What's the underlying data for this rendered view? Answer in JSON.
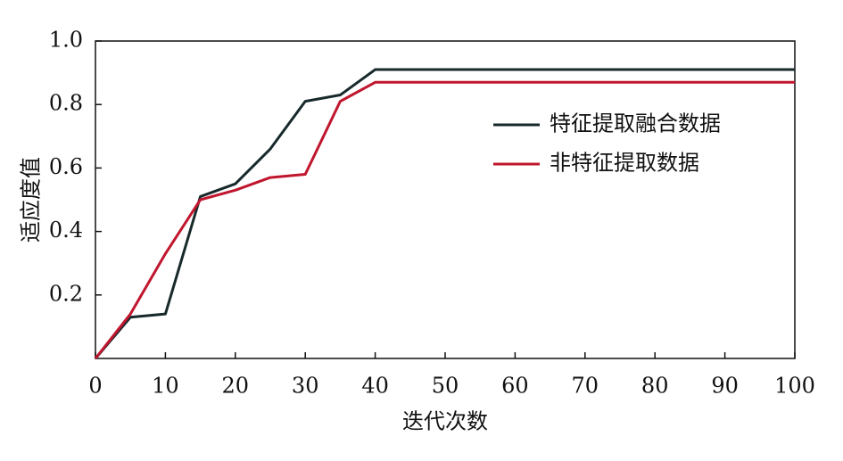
{
  "chart_data": {
    "type": "line",
    "x_label": "迭代次数",
    "y_label": "适应度值",
    "x": [
      0,
      5,
      10,
      15,
      20,
      25,
      30,
      35,
      40,
      100
    ],
    "series": [
      {
        "name": "特征提取融合数据",
        "color": "#17292b",
        "values": [
          0,
          0.13,
          0.14,
          0.51,
          0.55,
          0.66,
          0.81,
          0.83,
          0.91,
          0.91
        ]
      },
      {
        "name": "非特征提取数据",
        "color": "#c0162e",
        "values": [
          0,
          0.14,
          0.33,
          0.5,
          0.53,
          0.57,
          0.58,
          0.81,
          0.87,
          0.87
        ]
      }
    ],
    "xlim": [
      0,
      100
    ],
    "xticks": [
      0,
      10,
      20,
      30,
      40,
      50,
      60,
      70,
      80,
      90,
      100
    ],
    "ylim": [
      0,
      1
    ],
    "yticks": [
      0.2,
      0.4,
      0.6,
      0.8,
      {
        "value": 1,
        "label": "1.0"
      }
    ],
    "legend": "upper right",
    "grid": false
  }
}
